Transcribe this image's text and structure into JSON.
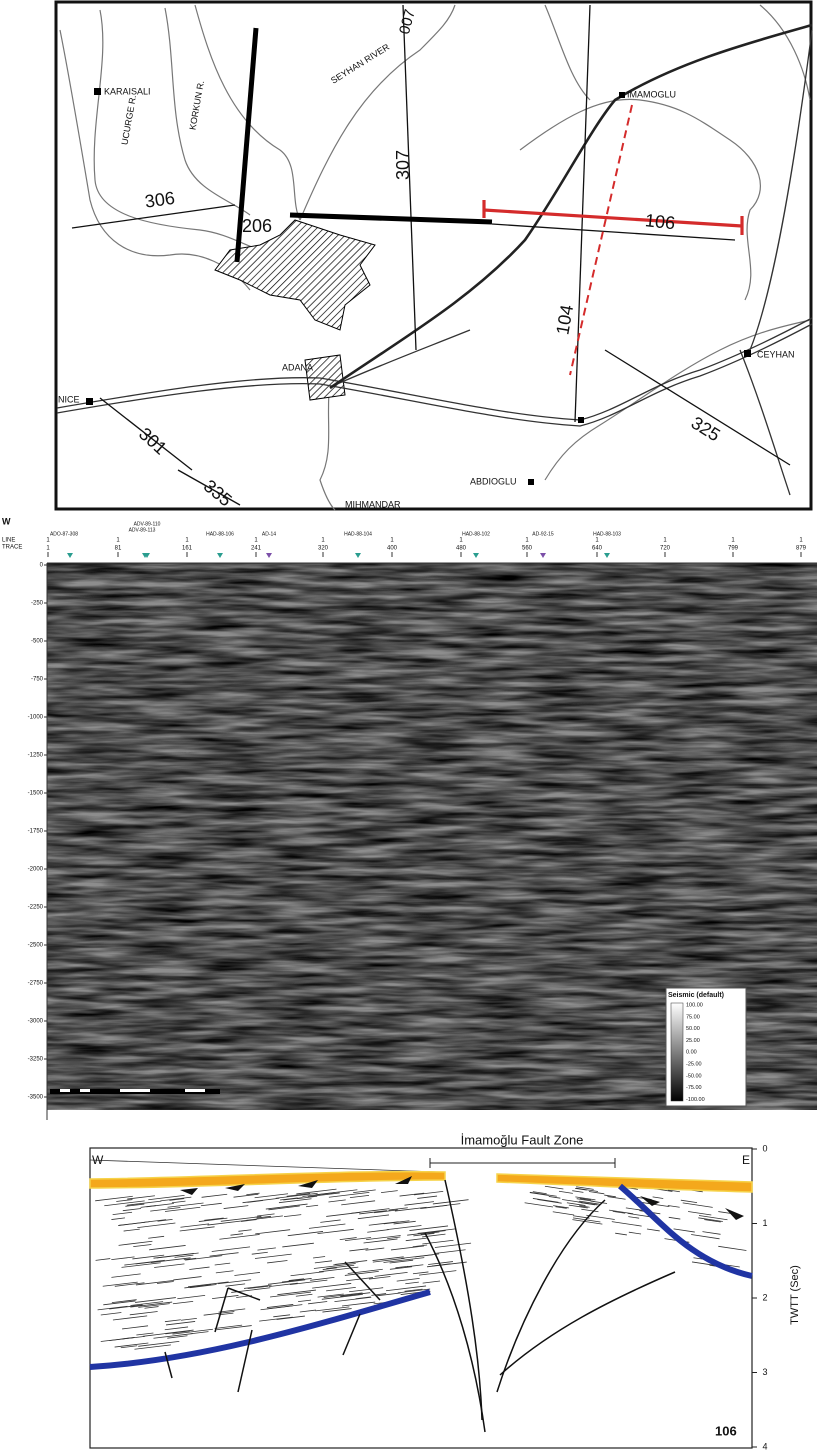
{
  "map": {
    "labels": [
      "KARAISALI",
      "UCURGE R.",
      "KORKUN R.",
      "SEYHAN RIVER",
      "007",
      "IMAMOGLU",
      "306",
      "206",
      "307",
      "106",
      "104",
      "CEYHAN",
      "ADANA",
      "NICE",
      "301",
      "335",
      "325",
      "ABDIOGLU",
      "MIHMANDAR"
    ]
  },
  "seismic": {
    "direction": "W",
    "line_label": "LINE",
    "trace_label": "TRACE",
    "line_names": [
      "ADO-87-308",
      "ADV-89-110",
      "ADV-89-113",
      "HAD-88-106",
      "AD-14",
      "HAD-88-104",
      "HAD-88-102",
      "AD-92-15",
      "HAD-88-103"
    ],
    "line_values": [
      1,
      1,
      1,
      1,
      1,
      1,
      1,
      1,
      1,
      1,
      1,
      1
    ],
    "traces": [
      1,
      81,
      161,
      241,
      320,
      400,
      480,
      560,
      640,
      720,
      799,
      879
    ],
    "depths": [
      0,
      -250,
      -500,
      -750,
      -1000,
      -1250,
      -1500,
      -1750,
      -2000,
      -2250,
      -2500,
      -2750,
      -3000,
      -3250,
      -3500
    ],
    "legend": {
      "title": "Seismic (default)",
      "values": [
        "100.00",
        "75.00",
        "50.00",
        "25.00",
        "0.00",
        "-25.00",
        "-50.00",
        "-75.00",
        "-100.00"
      ]
    }
  },
  "section": {
    "title": "İmamoğlu Fault Zone",
    "west": "W",
    "east": "E",
    "axis_label": "TWTT (Sec)",
    "ticks": [
      0,
      1,
      2,
      3,
      4
    ],
    "line": "106"
  }
}
